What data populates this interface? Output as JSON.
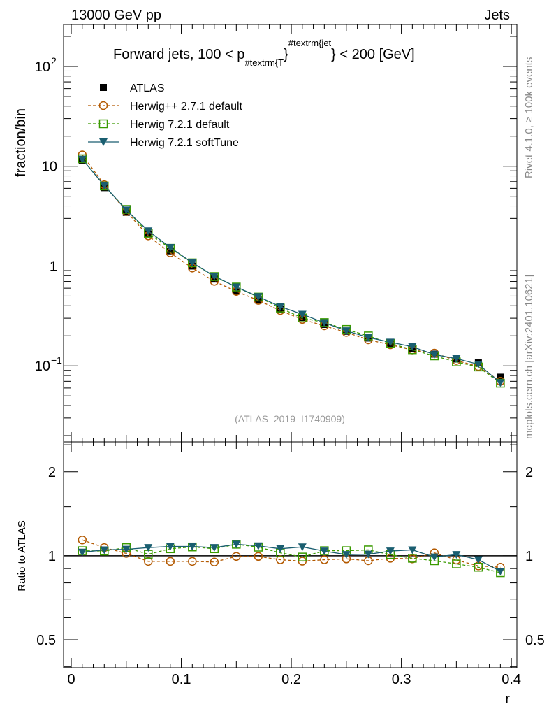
{
  "header": {
    "left": "13000 GeV pp",
    "right": "Jets"
  },
  "side_labels": {
    "rivet": "Rivet 4.1.0, ≥ 100k events",
    "mcplots": "mcplots.cern.ch [arXiv:2401.10621]"
  },
  "chart_data": {
    "type": "line",
    "title": "Forward jets, 100 < p",
    "title_sub": "#textrm{T",
    "title_sup": "#textrm{jet",
    "title_end": "} < 200 [GeV]",
    "title_brace": "}",
    "watermark": "(ATLAS_2019_I1740909)",
    "xlabel": "r",
    "ylabel": "fraction/bin",
    "ratio_ylabel": "Ratio to ATLAS",
    "xlim": [
      -0.007,
      0.405
    ],
    "ylim": [
      0.0173,
      263
    ],
    "ratio_ylim": [
      0.397,
      2.56
    ],
    "yscale": "log",
    "x_ticks": [
      {
        "v": 0,
        "label": "0"
      },
      {
        "v": 0.1,
        "label": "0.1"
      },
      {
        "v": 0.2,
        "label": "0.2"
      },
      {
        "v": 0.3,
        "label": "0.3"
      },
      {
        "v": 0.4,
        "label": "0.4"
      }
    ],
    "y_ticks": [
      {
        "v": 100,
        "label": "10",
        "exp": "2"
      },
      {
        "v": 10,
        "label": "10",
        "exp": ""
      },
      {
        "v": 1,
        "label": "1",
        "exp": ""
      },
      {
        "v": 0.1,
        "label": "10",
        "exp": "−1"
      }
    ],
    "ratio_ticks": [
      {
        "v": 2,
        "label": "2"
      },
      {
        "v": 1,
        "label": "1"
      },
      {
        "v": 0.5,
        "label": "0.5"
      }
    ],
    "x": [
      0.01,
      0.03,
      0.05,
      0.07,
      0.09,
      0.11,
      0.13,
      0.15,
      0.17,
      0.19,
      0.21,
      0.23,
      0.25,
      0.27,
      0.29,
      0.31,
      0.33,
      0.35,
      0.37,
      0.39
    ],
    "legend_position": "top-left",
    "series": [
      {
        "name": "ATLAS",
        "color": "#000000",
        "marker": "square-filled",
        "line": "none",
        "values": [
          11.4,
          6.1,
          3.45,
          2.1,
          1.42,
          1.0,
          0.74,
          0.56,
          0.455,
          0.37,
          0.305,
          0.26,
          0.222,
          0.19,
          0.166,
          0.148,
          0.131,
          0.117,
          0.107,
          0.077
        ],
        "ratio": [
          1,
          1,
          1,
          1,
          1,
          1,
          1,
          1,
          1,
          1,
          1,
          1,
          1,
          1,
          1,
          1,
          1,
          1,
          1,
          1
        ]
      },
      {
        "name": "Herwig++ 2.7.1 default",
        "color": "#b35900",
        "marker": "circle-open",
        "line": "dashed",
        "ratio": [
          1.14,
          1.07,
          1.02,
          0.955,
          0.955,
          0.955,
          0.95,
          0.995,
          0.995,
          0.968,
          0.957,
          0.968,
          0.975,
          0.96,
          0.98,
          0.975,
          1.025,
          0.966,
          0.92,
          0.91
        ]
      },
      {
        "name": "Herwig 7.2.1 default",
        "color": "#3a9a00",
        "marker": "square-open",
        "line": "dashed",
        "ratio": [
          1.043,
          1.04,
          1.07,
          1.013,
          1.06,
          1.076,
          1.06,
          1.1,
          1.074,
          1.025,
          0.99,
          1.043,
          1.043,
          1.05,
          1.01,
          0.98,
          0.96,
          0.935,
          0.91,
          0.87
        ]
      },
      {
        "name": "Herwig 7.2.1 softTune",
        "color": "#1a5e70",
        "marker": "triangle-down",
        "line": "solid",
        "ratio": [
          1.03,
          1.05,
          1.055,
          1.07,
          1.08,
          1.08,
          1.07,
          1.1,
          1.085,
          1.06,
          1.076,
          1.04,
          1.01,
          1.013,
          1.04,
          1.05,
          0.99,
          1.01,
          0.968,
          0.88
        ]
      }
    ]
  }
}
